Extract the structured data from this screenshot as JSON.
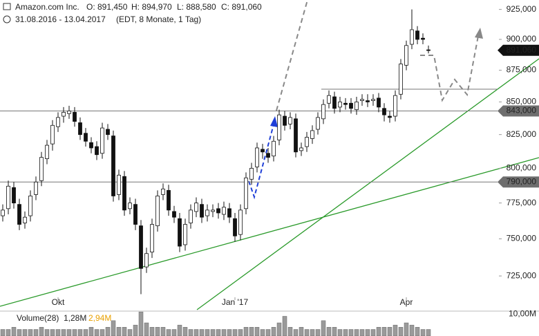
{
  "chart_data": {
    "type": "candlestick",
    "title": "Amazon.com Inc.",
    "ohlc_labels": [
      "O: 891,450",
      "H: 894,970",
      "L: 888,580",
      "C: 891,060"
    ],
    "subtitle": "31.08.2016 - 13.04.2017",
    "period": "(EDT, 8 Monate, 1 Tag)",
    "categories": [
      null,
      null,
      null,
      null,
      null,
      null,
      null,
      null,
      null,
      null,
      "Okt",
      null,
      null,
      null,
      null,
      null,
      null,
      null,
      null,
      null,
      null,
      null,
      null,
      null,
      null,
      null,
      null,
      null,
      null,
      null,
      null,
      null,
      null,
      null,
      null,
      null,
      null,
      null,
      null,
      null,
      null,
      null,
      "Jan '17",
      null,
      null,
      null,
      null,
      null,
      null,
      null,
      null,
      null,
      null,
      null,
      null,
      null,
      null,
      null,
      null,
      null,
      null,
      null,
      null,
      null,
      null,
      null,
      null,
      null,
      null,
      null,
      null,
      null,
      null,
      "Apr",
      null,
      null,
      null,
      null
    ],
    "open": [
      766,
      771,
      786,
      774,
      761,
      766,
      781,
      791,
      807,
      818,
      831,
      839,
      841,
      842,
      834,
      826,
      819,
      816,
      811,
      829,
      824,
      781,
      794,
      771,
      774,
      759,
      731,
      741,
      759,
      781,
      784,
      769,
      764,
      746,
      761,
      769,
      774,
      766,
      769,
      771,
      767,
      771,
      764,
      753,
      771,
      792,
      801,
      814,
      811,
      809,
      821,
      839,
      833,
      837,
      813,
      816,
      822,
      829,
      837,
      849,
      854,
      846,
      849,
      849,
      844,
      851,
      851,
      851,
      853,
      845,
      839,
      839,
      856,
      879,
      896,
      907,
      901,
      891.45
    ],
    "high": [
      774,
      791,
      790,
      778,
      769,
      784,
      794,
      812,
      821,
      836,
      842,
      846,
      847,
      846,
      838,
      830,
      823,
      820,
      834,
      833,
      828,
      799,
      798,
      779,
      778,
      763,
      744,
      764,
      784,
      789,
      788,
      773,
      768,
      764,
      774,
      779,
      778,
      774,
      774,
      775,
      776,
      775,
      768,
      774,
      797,
      804,
      819,
      818,
      815,
      824,
      844,
      843,
      842,
      841,
      819,
      827,
      832,
      842,
      852,
      859,
      858,
      854,
      853,
      853,
      854,
      856,
      856,
      856,
      857,
      849,
      843,
      859,
      884,
      899,
      925,
      911,
      905,
      894.97
    ],
    "low": [
      762,
      767,
      771,
      756,
      757,
      762,
      777,
      787,
      803,
      813,
      827,
      834,
      837,
      831,
      821,
      816,
      811,
      806,
      807,
      821,
      776,
      777,
      766,
      767,
      756,
      713,
      727,
      737,
      755,
      777,
      766,
      761,
      741,
      742,
      757,
      765,
      761,
      762,
      765,
      764,
      763,
      761,
      748,
      749,
      767,
      788,
      797,
      807,
      804,
      805,
      817,
      828,
      829,
      808,
      809,
      812,
      818,
      825,
      833,
      845,
      841,
      842,
      844,
      841,
      840,
      847,
      846,
      847,
      842,
      835,
      834,
      835,
      852,
      875,
      892,
      896,
      896,
      888.58
    ],
    "close": [
      770,
      787,
      775,
      760,
      765,
      780,
      790,
      808,
      817,
      832,
      838,
      842,
      843,
      835,
      825,
      820,
      815,
      810,
      830,
      825,
      780,
      795,
      770,
      775,
      760,
      730,
      740,
      760,
      780,
      785,
      770,
      765,
      745,
      760,
      770,
      775,
      765,
      770,
      770,
      768,
      772,
      765,
      752,
      770,
      793,
      800,
      815,
      812,
      808,
      820,
      840,
      832,
      838,
      812,
      815,
      823,
      828,
      838,
      848,
      855,
      845,
      850,
      848,
      845,
      850,
      852,
      850,
      852,
      846,
      840,
      838,
      855,
      880,
      895,
      908,
      900,
      900,
      891.06
    ],
    "ylim": [
      711,
      933
    ],
    "log_scale": true,
    "yticks": [
      {
        "value": 725,
        "label": "725,000"
      },
      {
        "value": 750,
        "label": "750,000"
      },
      {
        "value": 775,
        "label": "775,000"
      },
      {
        "value": 800,
        "label": "800,000"
      },
      {
        "value": 825,
        "label": "825,000"
      },
      {
        "value": 850,
        "label": "850,000"
      },
      {
        "value": 875,
        "label": "875,000"
      },
      {
        "value": 900,
        "label": "900,000"
      },
      {
        "value": 925,
        "label": "925,000"
      }
    ],
    "last_price": {
      "value": 891.06,
      "label": "891,060"
    },
    "hlines": [
      {
        "value": 843,
        "label": "843,000"
      },
      {
        "value": 790,
        "label": "790,000"
      }
    ],
    "volume_title": "Volume(28)",
    "volume_labels": [
      "1,28M",
      "2,94M"
    ],
    "volume": [
      3,
      3,
      4,
      3,
      3,
      3,
      3,
      4,
      3,
      3,
      3,
      3,
      3,
      3,
      3,
      3,
      4,
      3,
      3,
      4,
      7,
      4,
      4,
      3,
      5,
      11,
      6,
      4,
      4,
      4,
      3,
      3,
      5,
      4,
      3,
      3,
      3,
      3,
      3,
      3,
      3,
      3,
      3,
      3,
      4,
      4,
      4,
      3,
      3,
      4,
      6,
      9,
      4,
      3,
      4,
      3,
      3,
      3,
      7,
      4,
      4,
      3,
      3,
      3,
      3,
      3,
      3,
      3,
      4,
      4,
      4,
      5,
      4,
      6,
      5,
      4,
      3,
      3
    ],
    "volume_ylim": [
      0,
      12
    ],
    "volume_yticks": [
      {
        "value": 10,
        "label": "10,00M"
      }
    ]
  }
}
